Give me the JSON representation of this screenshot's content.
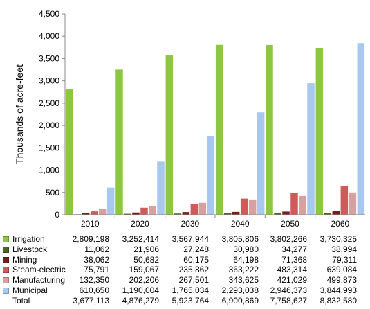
{
  "chart_data": {
    "type": "bar",
    "title": "",
    "xlabel": "",
    "ylabel": "Thousands of acre-feet",
    "ylim": [
      0,
      4500
    ],
    "yticks": [
      "0",
      "500",
      "1,000",
      "1,500",
      "2,000",
      "2,500",
      "3,000",
      "3,500",
      "4,000",
      "4,500"
    ],
    "ytick_values": [
      0,
      500,
      1000,
      1500,
      2000,
      2500,
      3000,
      3500,
      4000,
      4500
    ],
    "categories": [
      "2010",
      "2020",
      "2030",
      "2040",
      "2050",
      "2060"
    ],
    "grid": false,
    "legend": "data table below chart",
    "series": [
      {
        "name": "Irrigation",
        "color": "#8dc63f",
        "values": [
          2809198,
          3252414,
          3567944,
          3805806,
          3802266,
          3730325
        ],
        "labels": [
          "2,809,198",
          "3,252,414",
          "3,567,944",
          "3,805,806",
          "3,802,266",
          "3,730,325"
        ]
      },
      {
        "name": "Livestock",
        "color": "#4f6228",
        "values": [
          11062,
          21906,
          27248,
          30980,
          34277,
          38994
        ],
        "labels": [
          "11,062",
          "21,906",
          "27,248",
          "30,980",
          "34,277",
          "38,994"
        ]
      },
      {
        "name": "Mining",
        "color": "#7b1d1d",
        "values": [
          38062,
          50682,
          60175,
          64198,
          71368,
          79311
        ],
        "labels": [
          "38,062",
          "50,682",
          "60,175",
          "64,198",
          "71,368",
          "79,311"
        ]
      },
      {
        "name": "Steam-electric",
        "color": "#d05a5a",
        "values": [
          75791,
          159067,
          235862,
          363222,
          483314,
          639084
        ],
        "labels": [
          "75,791",
          "159,067",
          "235,862",
          "363,222",
          "483,314",
          "639,084"
        ]
      },
      {
        "name": "Manufacturing",
        "color": "#d9a0a0",
        "values": [
          132350,
          202206,
          267501,
          343625,
          421029,
          499873
        ],
        "labels": [
          "132,350",
          "202,206",
          "267,501",
          "343,625",
          "421,029",
          "499,873"
        ]
      },
      {
        "name": "Municipal",
        "color": "#a9c8ef",
        "values": [
          610650,
          1190004,
          1765034,
          2293038,
          2946373,
          3844993
        ],
        "labels": [
          "610,650",
          "1,190,004",
          "1,765,034",
          "2,293,038",
          "2,946,373",
          "3,844,993"
        ]
      }
    ],
    "total": {
      "name": "Total",
      "labels": [
        "3,677,113",
        "4,876,279",
        "5,923,764",
        "6,900,869",
        "7,758,627",
        "8,832,580"
      ]
    }
  }
}
